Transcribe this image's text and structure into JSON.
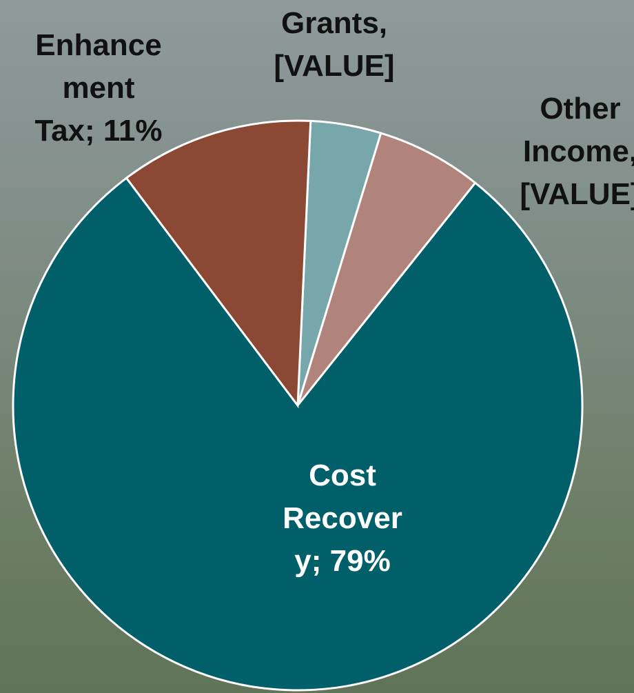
{
  "chart_data": {
    "type": "pie",
    "values": [
      4,
      6,
      79,
      11
    ],
    "value_labels": [
      "Grants, [VALUE]",
      "Other Income, [VALUE]",
      "Cost Recovery; 79%",
      "Enhancement Tax; 11%"
    ],
    "colors": [
      "#77a6ab",
      "#b0847a",
      "#005f69",
      "#8b4834"
    ]
  }
}
